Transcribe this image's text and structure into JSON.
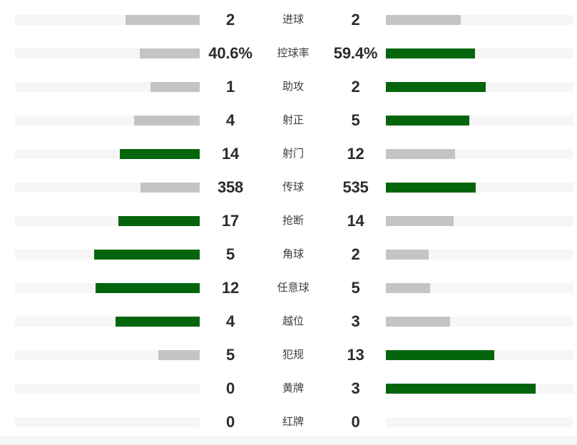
{
  "colors": {
    "leading_bar": "#05650d",
    "trailing_bar": "#c4c4c4",
    "bar_track": "#f6f6f6",
    "value_text": "#2b2b2b",
    "label_text": "#3d3d3d",
    "page_background": "#ffffff",
    "bottom_gutter": "#f2f3f3"
  },
  "chart_data": {
    "type": "bar",
    "orientation": "horizontal-opposed",
    "categories": [
      "进球",
      "控球率",
      "助攻",
      "射正",
      "射门",
      "传球",
      "抢断",
      "角球",
      "任意球",
      "越位",
      "犯规",
      "黄牌",
      "红牌"
    ],
    "series": [
      {
        "name": "home-left",
        "values": [
          2,
          40.6,
          1,
          4,
          14,
          358,
          17,
          5,
          12,
          4,
          5,
          0,
          0
        ]
      },
      {
        "name": "away-right",
        "values": [
          2,
          59.4,
          2,
          5,
          12,
          535,
          14,
          2,
          5,
          3,
          13,
          3,
          0
        ]
      }
    ],
    "value_label_format": "possession row shown as percent (40.6% / 59.4%), others as integers",
    "legend": "none",
    "grid": false,
    "layout_hints": {
      "bars_share_of_pair_sum": true,
      "max_bar_fraction_of_track": 0.8,
      "leading_side_color": "green",
      "trailing_or_tied_color": "gray",
      "zero_value": "no bar, empty track"
    }
  },
  "stats": {
    "rows": [
      {
        "label": "进球",
        "home": {
          "display": "2",
          "frac": 0.4,
          "state": "trail"
        },
        "away": {
          "display": "2",
          "frac": 0.4,
          "state": "trail"
        }
      },
      {
        "label": "控球率",
        "home": {
          "display": "40.6%",
          "frac": 0.3248,
          "state": "trail"
        },
        "away": {
          "display": "59.4%",
          "frac": 0.4752,
          "state": "lead"
        }
      },
      {
        "label": "助攻",
        "home": {
          "display": "1",
          "frac": 0.2667,
          "state": "trail"
        },
        "away": {
          "display": "2",
          "frac": 0.5333,
          "state": "lead"
        }
      },
      {
        "label": "射正",
        "home": {
          "display": "4",
          "frac": 0.3556,
          "state": "trail"
        },
        "away": {
          "display": "5",
          "frac": 0.4444,
          "state": "lead"
        }
      },
      {
        "label": "射门",
        "home": {
          "display": "14",
          "frac": 0.4308,
          "state": "lead"
        },
        "away": {
          "display": "12",
          "frac": 0.3692,
          "state": "trail"
        }
      },
      {
        "label": "传球",
        "home": {
          "display": "358",
          "frac": 0.3207,
          "state": "trail"
        },
        "away": {
          "display": "535",
          "frac": 0.4793,
          "state": "lead"
        }
      },
      {
        "label": "抢断",
        "home": {
          "display": "17",
          "frac": 0.4387,
          "state": "lead"
        },
        "away": {
          "display": "14",
          "frac": 0.3613,
          "state": "trail"
        }
      },
      {
        "label": "角球",
        "home": {
          "display": "5",
          "frac": 0.5714,
          "state": "lead"
        },
        "away": {
          "display": "2",
          "frac": 0.2286,
          "state": "trail"
        }
      },
      {
        "label": "任意球",
        "home": {
          "display": "12",
          "frac": 0.5647,
          "state": "lead"
        },
        "away": {
          "display": "5",
          "frac": 0.2353,
          "state": "trail"
        }
      },
      {
        "label": "越位",
        "home": {
          "display": "4",
          "frac": 0.4571,
          "state": "lead"
        },
        "away": {
          "display": "3",
          "frac": 0.3429,
          "state": "trail"
        }
      },
      {
        "label": "犯规",
        "home": {
          "display": "5",
          "frac": 0.2222,
          "state": "trail"
        },
        "away": {
          "display": "13",
          "frac": 0.5778,
          "state": "lead"
        }
      },
      {
        "label": "黄牌",
        "home": {
          "display": "0",
          "frac": 0,
          "state": "none"
        },
        "away": {
          "display": "3",
          "frac": 0.8,
          "state": "lead"
        }
      },
      {
        "label": "红牌",
        "home": {
          "display": "0",
          "frac": 0,
          "state": "none"
        },
        "away": {
          "display": "0",
          "frac": 0,
          "state": "none"
        }
      }
    ]
  }
}
